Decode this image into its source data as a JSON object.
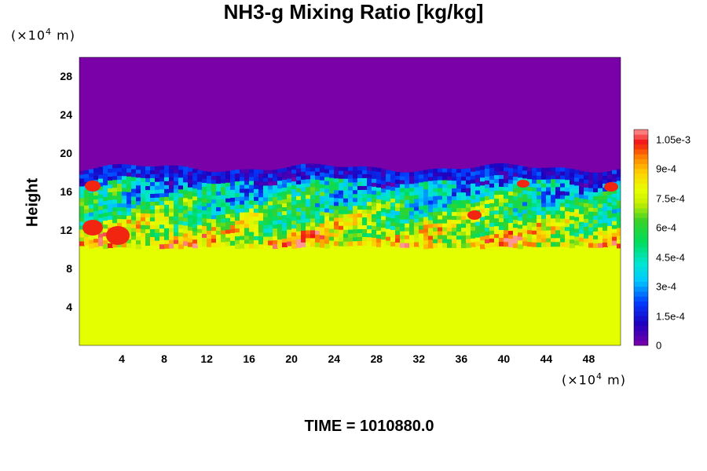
{
  "chart_data": {
    "type": "heatmap",
    "title": "NH3-g Mixing Ratio [kg/kg]",
    "xlabel": "",
    "ylabel": "Height",
    "x_unit": "(×10⁴ m)",
    "y_unit": "(×10⁴ m)",
    "xlim": [
      0,
      51
    ],
    "ylim": [
      0,
      30
    ],
    "x_ticks": [
      "4",
      "8",
      "12",
      "16",
      "20",
      "24",
      "28",
      "32",
      "36",
      "40",
      "44",
      "48"
    ],
    "y_ticks": [
      "4",
      "8",
      "12",
      "16",
      "20",
      "24",
      "28"
    ],
    "colorbar": {
      "min": 0,
      "max": 0.0011,
      "tick_labels": [
        "0",
        "1.5e-4",
        "3e-4",
        "4.5e-4",
        "6e-4",
        "7.5e-4",
        "9e-4",
        "1.05e-3"
      ],
      "tick_values": [
        0,
        0.00015,
        0.0003,
        0.00045,
        0.0006,
        0.00075,
        0.0009,
        0.00105
      ]
    },
    "regions": {
      "lower_uniform_value": 0.00078,
      "lower_top_height": 11,
      "upper_uniform_value": 0,
      "upper_bottom_height": 17.5
    },
    "footer": "TIME = 1010880.0"
  },
  "colors": {
    "upper": "#7a00a8",
    "lower": "#e4ff00"
  }
}
